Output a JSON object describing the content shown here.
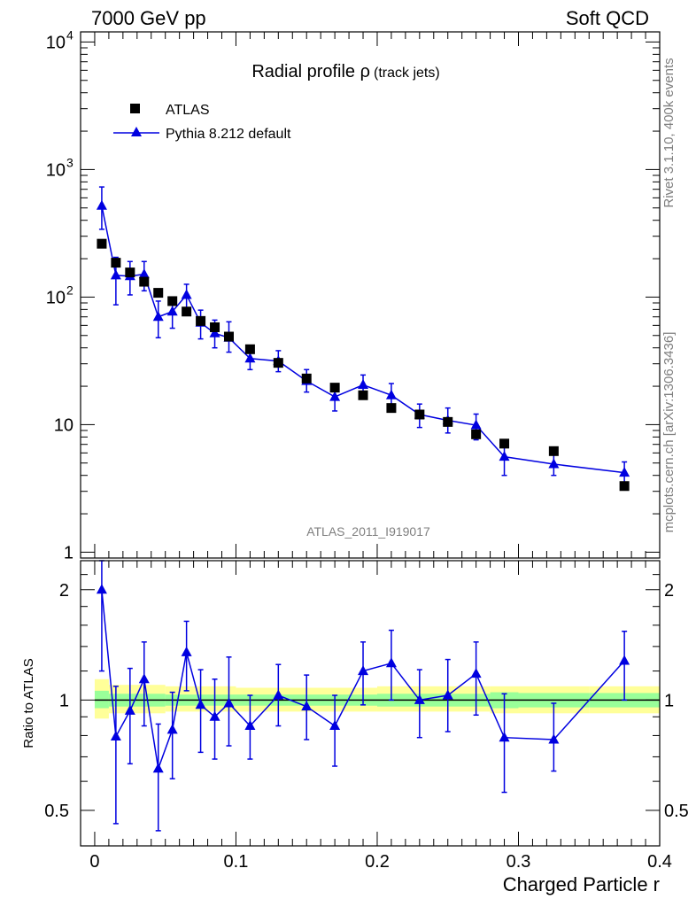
{
  "header": {
    "left_title": "7000 GeV pp",
    "right_title": "Soft QCD"
  },
  "side_labels": {
    "rivet": "Rivet 3.1.10,  400k events",
    "mcplots": "mcplots.cern.ch [arXiv:1306.3436]"
  },
  "colors": {
    "mc": "#0000e0",
    "data": "#000000",
    "band_outer": "#ffff99",
    "band_inner": "#99ff99"
  },
  "chart_data": [
    {
      "type": "scatter",
      "panel": "main",
      "title_main": "Radial profile ρ",
      "title_sub": "(track jets)",
      "analysis_tag": "ATLAS_2011_I919017",
      "yscale": "log",
      "xlim": [
        -0.01,
        0.4
      ],
      "ylim": [
        0.9,
        12000
      ],
      "ytick_labels": [
        {
          "value": 1,
          "label": "1",
          "sup": ""
        },
        {
          "value": 10,
          "label": "10",
          "sup": ""
        },
        {
          "value": 100,
          "label": "10",
          "sup": "2"
        },
        {
          "value": 1000,
          "label": "10",
          "sup": "3"
        },
        {
          "value": 10000,
          "label": "10",
          "sup": "4"
        }
      ],
      "legend_position": "top-left",
      "series": [
        {
          "name": "ATLAS",
          "marker": "square",
          "points": [
            {
              "x": 0.005,
              "y": 262
            },
            {
              "x": 0.015,
              "y": 186
            },
            {
              "x": 0.025,
              "y": 156
            },
            {
              "x": 0.035,
              "y": 132
            },
            {
              "x": 0.045,
              "y": 108
            },
            {
              "x": 0.055,
              "y": 93
            },
            {
              "x": 0.065,
              "y": 77
            },
            {
              "x": 0.075,
              "y": 65
            },
            {
              "x": 0.085,
              "y": 58
            },
            {
              "x": 0.095,
              "y": 49
            },
            {
              "x": 0.11,
              "y": 39
            },
            {
              "x": 0.13,
              "y": 30.5
            },
            {
              "x": 0.15,
              "y": 23
            },
            {
              "x": 0.17,
              "y": 19.5
            },
            {
              "x": 0.19,
              "y": 17
            },
            {
              "x": 0.21,
              "y": 13.5
            },
            {
              "x": 0.23,
              "y": 12
            },
            {
              "x": 0.25,
              "y": 10.5
            },
            {
              "x": 0.27,
              "y": 8.4
            },
            {
              "x": 0.29,
              "y": 7.1
            },
            {
              "x": 0.325,
              "y": 6.2
            },
            {
              "x": 0.375,
              "y": 3.3
            }
          ]
        },
        {
          "name": "Pythia 8.212 default",
          "marker": "triangle",
          "line": true,
          "points": [
            {
              "x": 0.005,
              "y": 520,
              "lo": 340,
              "hi": 730
            },
            {
              "x": 0.015,
              "y": 148,
              "lo": 87,
              "hi": 205
            },
            {
              "x": 0.025,
              "y": 146,
              "lo": 104,
              "hi": 190
            },
            {
              "x": 0.035,
              "y": 151,
              "lo": 112,
              "hi": 190
            },
            {
              "x": 0.045,
              "y": 70,
              "lo": 48,
              "hi": 93
            },
            {
              "x": 0.055,
              "y": 77,
              "lo": 57,
              "hi": 98
            },
            {
              "x": 0.065,
              "y": 104,
              "lo": 82,
              "hi": 126
            },
            {
              "x": 0.075,
              "y": 63,
              "lo": 47,
              "hi": 79
            },
            {
              "x": 0.085,
              "y": 52,
              "lo": 40,
              "hi": 66
            },
            {
              "x": 0.095,
              "y": 48,
              "lo": 37,
              "hi": 64
            },
            {
              "x": 0.11,
              "y": 33,
              "lo": 27,
              "hi": 40
            },
            {
              "x": 0.13,
              "y": 31.5,
              "lo": 26,
              "hi": 38
            },
            {
              "x": 0.15,
              "y": 22,
              "lo": 18,
              "hi": 27
            },
            {
              "x": 0.17,
              "y": 16.5,
              "lo": 12.8,
              "hi": 20
            },
            {
              "x": 0.19,
              "y": 20.5,
              "lo": 16.5,
              "hi": 24.5
            },
            {
              "x": 0.21,
              "y": 17,
              "lo": 13.5,
              "hi": 21
            },
            {
              "x": 0.23,
              "y": 12,
              "lo": 9.5,
              "hi": 14.5
            },
            {
              "x": 0.25,
              "y": 10.8,
              "lo": 8.6,
              "hi": 13.5
            },
            {
              "x": 0.27,
              "y": 9.9,
              "lo": 7.6,
              "hi": 12.1
            },
            {
              "x": 0.29,
              "y": 5.6,
              "lo": 4.0,
              "hi": 7.4
            },
            {
              "x": 0.325,
              "y": 4.9,
              "lo": 4.0,
              "hi": 6.1
            },
            {
              "x": 0.375,
              "y": 4.2,
              "lo": 3.5,
              "hi": 5.1
            }
          ]
        }
      ]
    },
    {
      "type": "line",
      "panel": "ratio",
      "ylabel": "Ratio to ATLAS",
      "xlabel": "Charged Particle r",
      "yscale": "log",
      "xlim": [
        -0.01,
        0.4
      ],
      "ylim": [
        0.4,
        2.4
      ],
      "ytick_labels": [
        {
          "value": 0.5,
          "label": "0.5"
        },
        {
          "value": 1,
          "label": "1"
        },
        {
          "value": 2,
          "label": "2"
        }
      ],
      "xtick_labels": [
        {
          "value": 0,
          "label": "0"
        },
        {
          "value": 0.1,
          "label": "0.1"
        },
        {
          "value": 0.2,
          "label": "0.2"
        },
        {
          "value": 0.3,
          "label": "0.3"
        },
        {
          "value": 0.4,
          "label": "0.4"
        }
      ],
      "reference_line": 1,
      "bands": [
        {
          "xlo": 0.0,
          "xhi": 0.01,
          "outer": [
            0.89,
            1.14
          ],
          "inner": [
            0.95,
            1.06
          ]
        },
        {
          "xlo": 0.01,
          "xhi": 0.05,
          "outer": [
            0.92,
            1.1
          ],
          "inner": [
            0.96,
            1.04
          ]
        },
        {
          "xlo": 0.05,
          "xhi": 0.1,
          "outer": [
            0.93,
            1.09
          ],
          "inner": [
            0.965,
            1.035
          ]
        },
        {
          "xlo": 0.1,
          "xhi": 0.2,
          "outer": [
            0.93,
            1.08
          ],
          "inner": [
            0.965,
            1.035
          ]
        },
        {
          "xlo": 0.2,
          "xhi": 0.28,
          "outer": [
            0.93,
            1.09
          ],
          "inner": [
            0.96,
            1.04
          ]
        },
        {
          "xlo": 0.28,
          "xhi": 0.3,
          "outer": [
            0.92,
            1.09
          ],
          "inner": [
            0.95,
            1.05
          ]
        },
        {
          "xlo": 0.3,
          "xhi": 0.35,
          "outer": [
            0.92,
            1.09
          ],
          "inner": [
            0.955,
            1.045
          ]
        },
        {
          "xlo": 0.35,
          "xhi": 0.4,
          "outer": [
            0.92,
            1.09
          ],
          "inner": [
            0.955,
            1.045
          ]
        }
      ],
      "series": [
        {
          "name": "Pythia 8.212 default / ATLAS",
          "marker": "triangle",
          "points": [
            {
              "x": 0.005,
              "y": 2.0,
              "lo": 1.2,
              "hi": 2.4
            },
            {
              "x": 0.015,
              "y": 0.795,
              "lo": 0.46,
              "hi": 1.09
            },
            {
              "x": 0.025,
              "y": 0.935,
              "lo": 0.67,
              "hi": 1.22
            },
            {
              "x": 0.035,
              "y": 1.14,
              "lo": 0.85,
              "hi": 1.44
            },
            {
              "x": 0.045,
              "y": 0.65,
              "lo": 0.44,
              "hi": 0.86
            },
            {
              "x": 0.055,
              "y": 0.83,
              "lo": 0.61,
              "hi": 1.05
            },
            {
              "x": 0.065,
              "y": 1.35,
              "lo": 1.06,
              "hi": 1.64
            },
            {
              "x": 0.075,
              "y": 0.97,
              "lo": 0.72,
              "hi": 1.21
            },
            {
              "x": 0.085,
              "y": 0.9,
              "lo": 0.69,
              "hi": 1.14
            },
            {
              "x": 0.095,
              "y": 0.98,
              "lo": 0.75,
              "hi": 1.31
            },
            {
              "x": 0.11,
              "y": 0.85,
              "lo": 0.69,
              "hi": 1.03
            },
            {
              "x": 0.13,
              "y": 1.03,
              "lo": 0.85,
              "hi": 1.25
            },
            {
              "x": 0.15,
              "y": 0.96,
              "lo": 0.78,
              "hi": 1.17
            },
            {
              "x": 0.17,
              "y": 0.85,
              "lo": 0.66,
              "hi": 1.03
            },
            {
              "x": 0.19,
              "y": 1.2,
              "lo": 0.97,
              "hi": 1.44
            },
            {
              "x": 0.21,
              "y": 1.26,
              "lo": 1.0,
              "hi": 1.55
            },
            {
              "x": 0.23,
              "y": 1.0,
              "lo": 0.79,
              "hi": 1.21
            },
            {
              "x": 0.25,
              "y": 1.03,
              "lo": 0.82,
              "hi": 1.29
            },
            {
              "x": 0.27,
              "y": 1.18,
              "lo": 0.91,
              "hi": 1.44
            },
            {
              "x": 0.29,
              "y": 0.79,
              "lo": 0.56,
              "hi": 1.04
            },
            {
              "x": 0.325,
              "y": 0.78,
              "lo": 0.64,
              "hi": 0.98
            },
            {
              "x": 0.375,
              "y": 1.28,
              "lo": 1.0,
              "hi": 1.54
            }
          ]
        }
      ]
    }
  ]
}
